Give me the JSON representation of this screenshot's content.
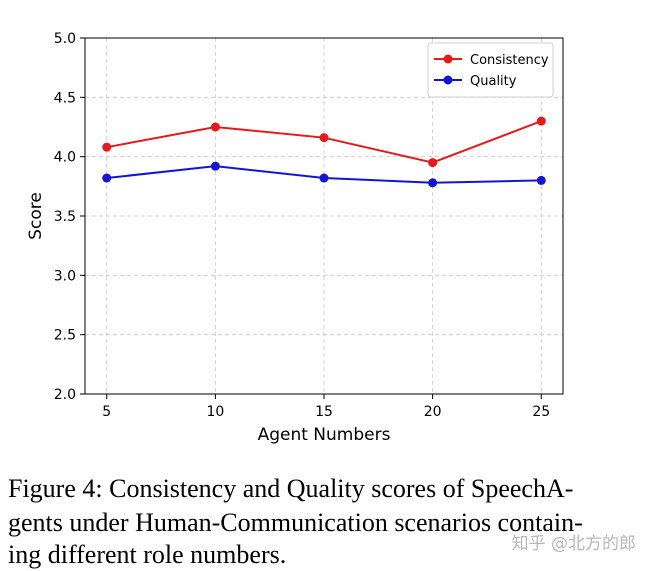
{
  "chart_data": {
    "type": "line",
    "xlabel": "Agent Numbers",
    "ylabel": "Score",
    "x": [
      5,
      10,
      15,
      20,
      25
    ],
    "series": [
      {
        "name": "Consistency",
        "color": "#e41a1c",
        "values": [
          4.08,
          4.25,
          4.16,
          3.95,
          4.3
        ]
      },
      {
        "name": "Quality",
        "color": "#1515d1",
        "values": [
          3.82,
          3.92,
          3.82,
          3.78,
          3.8
        ]
      }
    ],
    "xlim": [
      4,
      26
    ],
    "xticks": [
      5,
      10,
      15,
      20,
      25
    ],
    "ylim": [
      2.0,
      5.0
    ],
    "yticks": [
      {
        "value": 2.0,
        "label": "2.0"
      },
      {
        "value": 2.5,
        "label": "2.5"
      },
      {
        "value": 3.0,
        "label": "3.0"
      },
      {
        "value": 3.5,
        "label": "3.5"
      },
      {
        "value": 4.0,
        "label": "4.0"
      },
      {
        "value": 4.5,
        "label": "4.5"
      },
      {
        "value": 5.0,
        "label": "5.0"
      }
    ],
    "grid": true,
    "legend": "upper right"
  },
  "caption": {
    "lines": [
      "Figure 4: Consistency and Quality scores of SpeechA-",
      "gents under Human-Communication scenarios contain-",
      "ing different role numbers."
    ]
  },
  "watermark": "知乎 @北方的郎"
}
